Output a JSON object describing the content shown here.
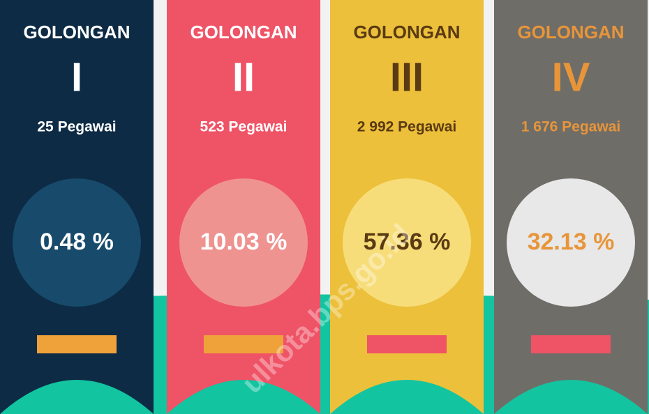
{
  "cards": [
    {
      "title": "GOLONGAN",
      "numeral": "I",
      "count": "25 Pegawai",
      "percent": "0.48 %",
      "color": "#0d2b45",
      "circle": "#174a6b",
      "text": "#ffffff",
      "bar": "#f0a23a"
    },
    {
      "title": "GOLONGAN",
      "numeral": "II",
      "count": "523 Pegawai",
      "percent": "10.03 %",
      "color": "#ef5366",
      "circle": "#ee9390",
      "text": "#ffffff",
      "bar": "#f0a23a"
    },
    {
      "title": "GOLONGAN",
      "numeral": "III",
      "count": "2 992 Pegawai",
      "percent": "57.36 %",
      "color": "#ecc03a",
      "circle": "#f7dd7a",
      "text": "#5a3a12",
      "bar": "#ef5366"
    },
    {
      "title": "GOLONGAN",
      "numeral": "IV",
      "count": "1 676 Pegawai",
      "percent": "32.13 %",
      "color": "#6f6d68",
      "circle": "#e8e8e8",
      "text": "#e8953a",
      "bar": "#ef5366"
    }
  ],
  "watermark": "ulkota.bps.go.id"
}
